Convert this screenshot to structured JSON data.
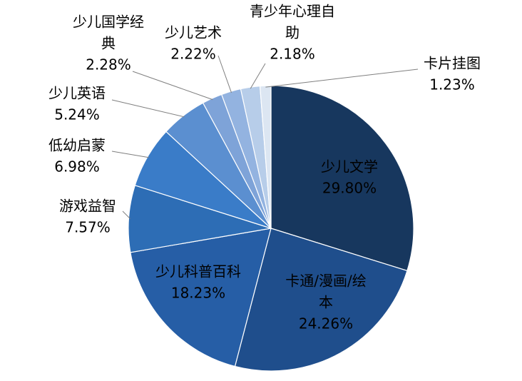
{
  "chart_data": {
    "type": "pie",
    "categories": [
      "少儿文学",
      "卡通/漫画/绘本",
      "少儿科普百科",
      "游戏益智",
      "低幼启蒙",
      "少儿英语",
      "少儿国学经典",
      "少儿艺术",
      "青少年心理自助",
      "卡片挂图"
    ],
    "values": [
      29.8,
      24.26,
      18.23,
      7.57,
      6.98,
      5.24,
      2.28,
      2.22,
      2.18,
      1.23
    ],
    "value_labels": [
      "29.80%",
      "24.26%",
      "18.23%",
      "7.57%",
      "6.98%",
      "5.24%",
      "2.28%",
      "2.22%",
      "2.18%",
      "1.23%"
    ],
    "colors": [
      "#17375e",
      "#1f4e8c",
      "#265ea6",
      "#2d6db5",
      "#3a7cc8",
      "#5b8fd0",
      "#7ea3d8",
      "#93b3e0",
      "#b7cde9",
      "#dce6f2"
    ],
    "title": "",
    "legend": "none"
  }
}
